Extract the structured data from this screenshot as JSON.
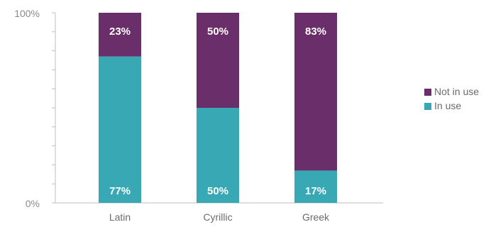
{
  "chart_data": {
    "type": "bar",
    "stacked": true,
    "categories": [
      "Latin",
      "Cyrillic",
      "Greek"
    ],
    "series": [
      {
        "name": "In use",
        "values": [
          77,
          50,
          17
        ],
        "color": "#38a9b4",
        "labels": [
          "77%",
          "50%",
          "17%"
        ]
      },
      {
        "name": "Not in use",
        "values": [
          23,
          50,
          83
        ],
        "color": "#6a2e6a",
        "labels": [
          "23%",
          "50%",
          "83%"
        ]
      }
    ],
    "ylim": [
      0,
      100
    ],
    "y_tick_labels": [
      "0%",
      "100%"
    ],
    "legend": {
      "placement": "right",
      "order": [
        "Not in use",
        "In use"
      ]
    },
    "grid": false,
    "colors": {
      "axis": "#bfbfbf",
      "tick_text": "#8a8a8a",
      "label_text": "#6b6b6b"
    }
  }
}
